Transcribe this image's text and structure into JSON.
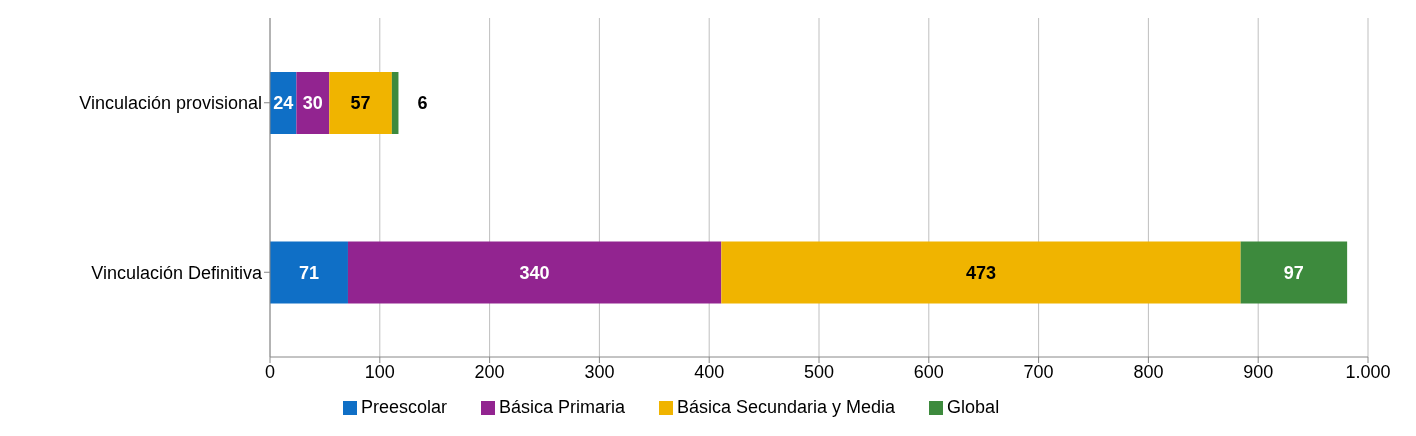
{
  "chart_data": {
    "type": "bar",
    "orientation": "horizontal",
    "stacked": true,
    "categories": [
      "Vinculación provisional",
      "Vinculación Definitiva"
    ],
    "series": [
      {
        "name": "Preescolar",
        "color": "#0f6fc6",
        "values": [
          24,
          71
        ]
      },
      {
        "name": "Básica Primaria",
        "color": "#922490",
        "values": [
          30,
          340
        ]
      },
      {
        "name": "Básica Secundaria y Media",
        "color": "#f0b400",
        "values": [
          57,
          473
        ]
      },
      {
        "name": "Global",
        "color": "#3d8a3d",
        "values": [
          6,
          97
        ]
      }
    ],
    "xlim": [
      0,
      1000
    ],
    "xticks": [
      0,
      100,
      200,
      300,
      400,
      500,
      600,
      700,
      800,
      900,
      {
        "value": 1000,
        "label": "1.000"
      }
    ],
    "grid": "x",
    "legend": "bottom",
    "data_labels": true
  }
}
